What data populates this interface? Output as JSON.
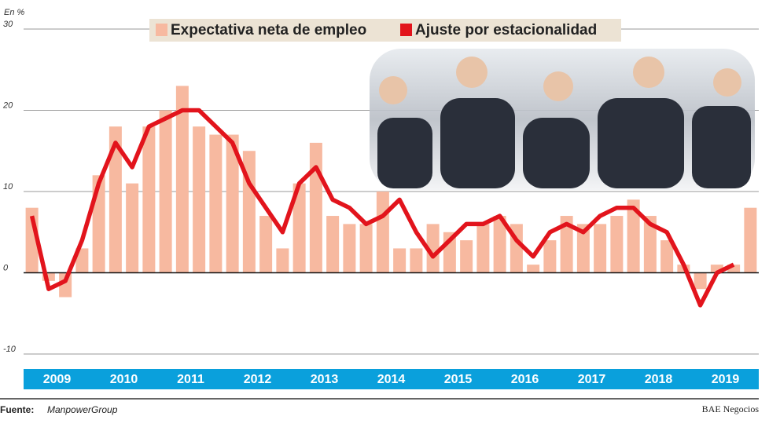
{
  "chart_data": {
    "type": "bar_line",
    "y_unit_label": "En %",
    "categories": [
      null,
      null,
      null,
      null,
      null,
      null,
      null,
      null,
      null,
      null,
      null,
      null,
      null,
      null,
      null,
      null,
      null,
      null,
      null,
      null,
      null,
      null,
      null,
      null,
      null,
      null,
      null,
      null,
      null,
      null,
      null,
      null,
      null,
      null,
      null,
      null,
      null,
      null,
      null,
      null,
      null,
      null,
      null,
      null
    ],
    "year_labels": [
      "2009",
      "2010",
      "2011",
      "2012",
      "2013",
      "2014",
      "2015",
      "2016",
      "2017",
      "2018",
      "2019"
    ],
    "series": [
      {
        "name": "Expectativa neta de empleo",
        "color": "#f7b9a0",
        "kind": "bar",
        "values": [
          8,
          -1,
          -3,
          3,
          12,
          18,
          11,
          18,
          20,
          23,
          18,
          17,
          17,
          15,
          7,
          3,
          11,
          16,
          7,
          6,
          6,
          10,
          3,
          3,
          6,
          5,
          4,
          6,
          7,
          6,
          1,
          4,
          7,
          6,
          6,
          7,
          9,
          7,
          4,
          1,
          -2,
          1,
          1,
          8
        ]
      },
      {
        "name": "Ajuste por estacionalidad",
        "color": "#e2141c",
        "kind": "line",
        "values": [
          7,
          -2,
          -1,
          4,
          11,
          16,
          13,
          18,
          19,
          20,
          20,
          18,
          16,
          11,
          8,
          5,
          11,
          13,
          9,
          8,
          6,
          7,
          9,
          5,
          2,
          4,
          6,
          6,
          7,
          4,
          2,
          5,
          6,
          5,
          7,
          8,
          8,
          6,
          5,
          1,
          -4,
          0,
          1,
          null
        ]
      }
    ],
    "ylim": [
      -10,
      30
    ],
    "yticks": [
      30,
      20,
      10,
      0,
      -10
    ],
    "grid": true,
    "source_label": "Fuente:",
    "source": "ManpowerGroup",
    "publisher": "BAE Negocios"
  }
}
